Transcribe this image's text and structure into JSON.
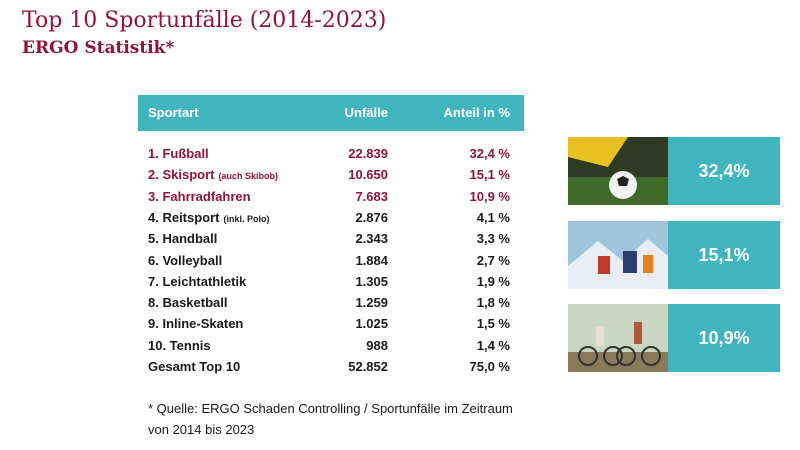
{
  "header": {
    "title": "Top 10 Sportunfälle (2014-2023)",
    "subtitle": "ERGO Statistik*"
  },
  "table": {
    "columns": [
      "Sportart",
      "Unfälle",
      "Anteil in %"
    ],
    "rows": [
      {
        "name": "1. Fußball",
        "count": "22.839",
        "share": "32,4 %"
      },
      {
        "name": "2. Skisport",
        "note": "(auch Skibob)",
        "count": "10.650",
        "share": "15,1 %"
      },
      {
        "name": "3. Fahrradfahren",
        "count": "7.683",
        "share": "10,9 %"
      },
      {
        "name": "4. Reitsport",
        "note": "(inkl. Polo)",
        "count": "2.876",
        "share": "4,1 %"
      },
      {
        "name": "5. Handball",
        "count": "2.343",
        "share": "3,3 %"
      },
      {
        "name": "6. Volleyball",
        "count": "1.884",
        "share": "2,7 %"
      },
      {
        "name": "7. Leichtathletik",
        "count": "1.305",
        "share": "1,9 %"
      },
      {
        "name": "8. Basketball",
        "count": "1.259",
        "share": "1,8 %"
      },
      {
        "name": "9. Inline-Skaten",
        "count": "1.025",
        "share": "1,5 %"
      },
      {
        "name": "10. Tennis",
        "count": "988",
        "share": "1,4 %"
      },
      {
        "name": "Gesamt Top 10",
        "count": "52.852",
        "share": "75,0 %"
      }
    ]
  },
  "footnote": [
    "* Quelle: ERGO Schaden Controlling / Sportunfälle im Zeitraum",
    "von 2014 bis 2023"
  ],
  "highlights": [
    "32,4%",
    "15,1%",
    "10,9%"
  ]
}
